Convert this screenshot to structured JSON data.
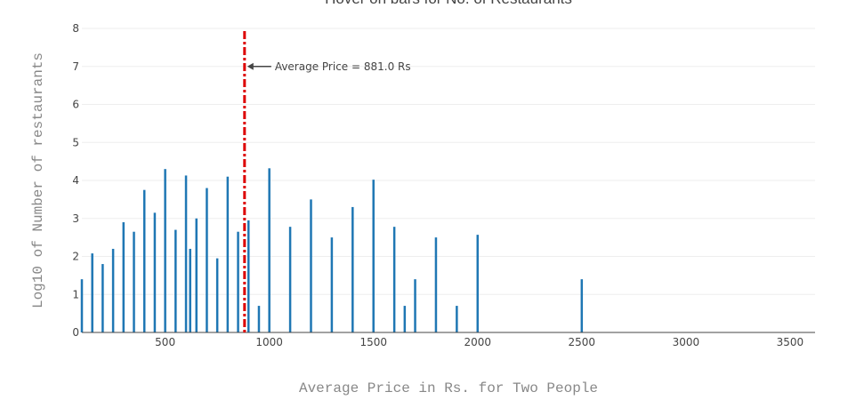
{
  "chart_data": {
    "type": "bar",
    "title": "Hover on bars for No. of Restaurants",
    "xlabel": "Average Price in Rs. for Two People",
    "ylabel": "Log10 of Number of restaurants",
    "xlim": [
      100,
      3620
    ],
    "ylim": [
      0,
      8
    ],
    "xticks": [
      500,
      1000,
      1500,
      2000,
      2500,
      3000,
      3500
    ],
    "yticks": [
      0,
      1,
      2,
      3,
      4,
      5,
      6,
      7,
      8
    ],
    "grid": true,
    "bar_color": "#1f77b4",
    "x": [
      100,
      150,
      200,
      250,
      300,
      350,
      400,
      450,
      500,
      550,
      600,
      620,
      650,
      700,
      750,
      800,
      850,
      900,
      950,
      1000,
      1100,
      1200,
      1300,
      1400,
      1500,
      1600,
      1650,
      1700,
      1800,
      1900,
      2000,
      2500
    ],
    "values": [
      1.4,
      2.08,
      1.8,
      2.2,
      2.9,
      2.65,
      3.75,
      3.15,
      4.3,
      2.7,
      4.13,
      2.2,
      3.0,
      3.8,
      1.95,
      4.1,
      2.65,
      2.95,
      0.7,
      4.32,
      2.78,
      3.5,
      2.5,
      3.3,
      4.02,
      2.78,
      0.7,
      1.4,
      2.5,
      0.7,
      2.57,
      1.4
    ],
    "average_line": {
      "x": 881.0,
      "color": "#dd0000",
      "label": "Average Price = 881.0 Rs",
      "label_y": 7
    }
  }
}
